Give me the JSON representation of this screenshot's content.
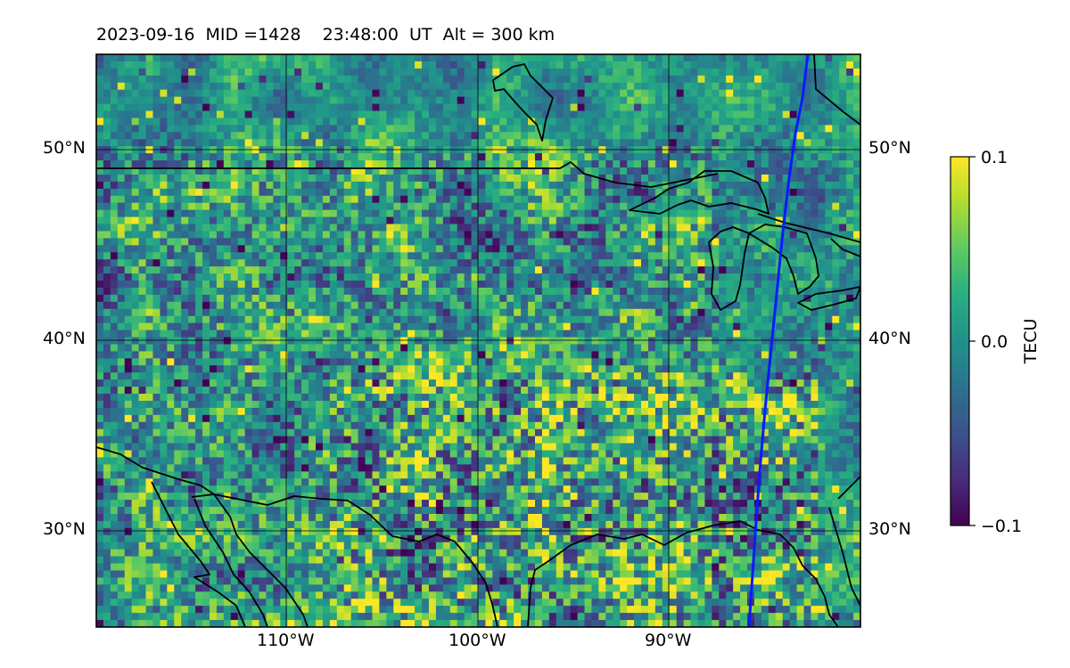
{
  "title": "2023-09-16  MID =1428    23:48:00  UT  Alt = 300 km",
  "map": {
    "lat_range": [
      25,
      55
    ],
    "lon_range": [
      -120,
      -80
    ],
    "colormap": "viridis",
    "seed": 1428
  },
  "lat_ticks": [
    "50°N",
    "40°N",
    "30°N"
  ],
  "lon_ticks": [
    "110°W",
    "100°W",
    "90°W"
  ],
  "colorbar": {
    "label": "TECU",
    "ticks": [
      "0.1",
      "0.0",
      "−0.1"
    ],
    "min": -0.1,
    "max": 0.1
  },
  "colors": {
    "terminator": "#0a1aff",
    "coast": "#000000",
    "grid": "#000000"
  }
}
